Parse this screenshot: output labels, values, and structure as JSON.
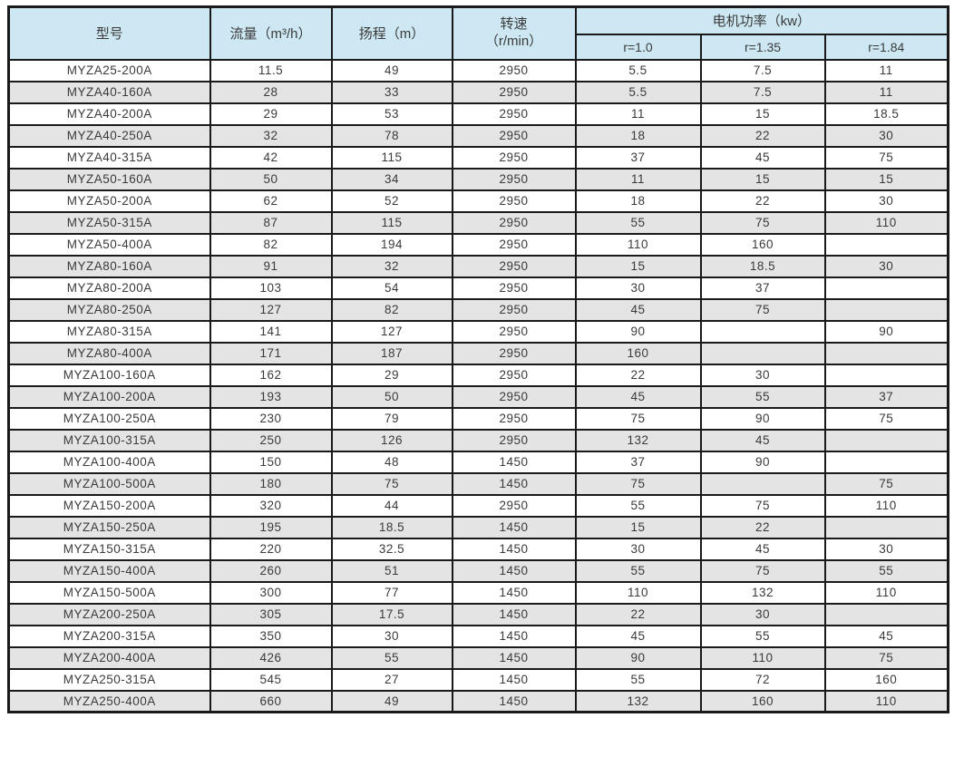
{
  "colors": {
    "header_bg": "#cde8f2",
    "row_bg": "#ffffff",
    "alt_row_bg": "#e4e4e4",
    "border": "#1a1a1a",
    "text": "#3a3a3a"
  },
  "table": {
    "headers": {
      "model": "型号",
      "flow": "流量（m³/h）",
      "head": "扬程（m）",
      "speed_line1": "转速",
      "speed_line2": "（r/min）",
      "power_group": "电机功率（kw）",
      "power_subs": [
        "r=1.0",
        "r=1.35",
        "r=1.84"
      ]
    },
    "rows": [
      [
        "MYZA25-200A",
        "11.5",
        "49",
        "2950",
        "5.5",
        "7.5",
        "11"
      ],
      [
        "MYZA40-160A",
        "28",
        "33",
        "2950",
        "5.5",
        "7.5",
        "11"
      ],
      [
        "MYZA40-200A",
        "29",
        "53",
        "2950",
        "11",
        "15",
        "18.5"
      ],
      [
        "MYZA40-250A",
        "32",
        "78",
        "2950",
        "18",
        "22",
        "30"
      ],
      [
        "MYZA40-315A",
        "42",
        "115",
        "2950",
        "37",
        "45",
        "75"
      ],
      [
        "MYZA50-160A",
        "50",
        "34",
        "2950",
        "11",
        "15",
        "15"
      ],
      [
        "MYZA50-200A",
        "62",
        "52",
        "2950",
        "18",
        "22",
        "30"
      ],
      [
        "MYZA50-315A",
        "87",
        "115",
        "2950",
        "55",
        "75",
        "110"
      ],
      [
        "MYZA50-400A",
        "82",
        "194",
        "2950",
        "110",
        "160",
        ""
      ],
      [
        "MYZA80-160A",
        "91",
        "32",
        "2950",
        "15",
        "18.5",
        "30"
      ],
      [
        "MYZA80-200A",
        "103",
        "54",
        "2950",
        "30",
        "37",
        ""
      ],
      [
        "MYZA80-250A",
        "127",
        "82",
        "2950",
        "45",
        "75",
        ""
      ],
      [
        "MYZA80-315A",
        "141",
        "127",
        "2950",
        "90",
        "",
        "90"
      ],
      [
        "MYZA80-400A",
        "171",
        "187",
        "2950",
        "160",
        "",
        ""
      ],
      [
        "MYZA100-160A",
        "162",
        "29",
        "2950",
        "22",
        "30",
        ""
      ],
      [
        "MYZA100-200A",
        "193",
        "50",
        "2950",
        "45",
        "55",
        "37"
      ],
      [
        "MYZA100-250A",
        "230",
        "79",
        "2950",
        "75",
        "90",
        "75"
      ],
      [
        "MYZA100-315A",
        "250",
        "126",
        "2950",
        "132",
        "45",
        ""
      ],
      [
        "MYZA100-400A",
        "150",
        "48",
        "1450",
        "37",
        "90",
        ""
      ],
      [
        "MYZA100-500A",
        "180",
        "75",
        "1450",
        "75",
        "",
        "75"
      ],
      [
        "MYZA150-200A",
        "320",
        "44",
        "2950",
        "55",
        "75",
        "110"
      ],
      [
        "MYZA150-250A",
        "195",
        "18.5",
        "1450",
        "15",
        "22",
        ""
      ],
      [
        "MYZA150-315A",
        "220",
        "32.5",
        "1450",
        "30",
        "45",
        "30"
      ],
      [
        "MYZA150-400A",
        "260",
        "51",
        "1450",
        "55",
        "75",
        "55"
      ],
      [
        "MYZA150-500A",
        "300",
        "77",
        "1450",
        "110",
        "132",
        "110"
      ],
      [
        "MYZA200-250A",
        "305",
        "17.5",
        "1450",
        "22",
        "30",
        ""
      ],
      [
        "MYZA200-315A",
        "350",
        "30",
        "1450",
        "45",
        "55",
        "45"
      ],
      [
        "MYZA200-400A",
        "426",
        "55",
        "1450",
        "90",
        "110",
        "75"
      ],
      [
        "MYZA250-315A",
        "545",
        "27",
        "1450",
        "55",
        "72",
        "160"
      ],
      [
        "MYZA250-400A",
        "660",
        "49",
        "1450",
        "132",
        "160",
        "110"
      ]
    ]
  }
}
